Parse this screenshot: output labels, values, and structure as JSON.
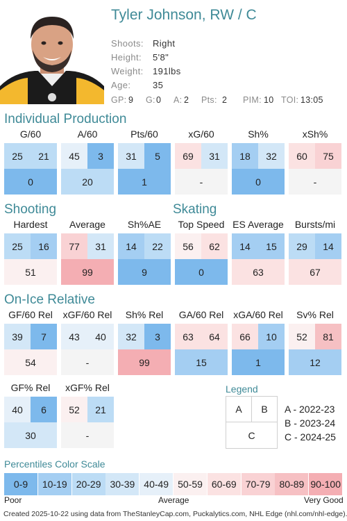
{
  "player": {
    "name": "Tyler Johnson, RW / C",
    "info": [
      {
        "label": "Shoots:",
        "value": "Right"
      },
      {
        "label": "Height:",
        "value": "5'8\""
      },
      {
        "label": "Weight:",
        "value": "191lbs"
      },
      {
        "label": "Age:",
        "value": "35"
      }
    ],
    "stats": [
      {
        "label": "GP:",
        "value": "9"
      },
      {
        "label": "G:",
        "value": "0"
      },
      {
        "label": "A:",
        "value": "2"
      },
      {
        "label": "Pts:",
        "value": "2"
      },
      {
        "label": "PIM:",
        "value": "10"
      },
      {
        "label": "TOI:",
        "value": "13:05"
      }
    ]
  },
  "sections": {
    "individual_production": "Individual Production",
    "shooting": "Shooting",
    "skating": "Skating",
    "on_ice_relative": "On-Ice Relative"
  },
  "metrics": {
    "g60": {
      "label": "G/60",
      "a": "25",
      "b": "21",
      "c": "0"
    },
    "a60": {
      "label": "A/60",
      "a": "45",
      "b": "3",
      "c": "20"
    },
    "pts60": {
      "label": "Pts/60",
      "a": "31",
      "b": "5",
      "c": "1"
    },
    "xg60": {
      "label": "xG/60",
      "a": "69",
      "b": "31",
      "c": "-"
    },
    "sh": {
      "label": "Sh%",
      "a": "18",
      "b": "32",
      "c": "0"
    },
    "xsh": {
      "label": "xSh%",
      "a": "60",
      "b": "75",
      "c": "-"
    },
    "hardest": {
      "label": "Hardest",
      "a": "25",
      "b": "16",
      "c": "51"
    },
    "average": {
      "label": "Average",
      "a": "77",
      "b": "31",
      "c": "99"
    },
    "shae": {
      "label": "Sh%AE",
      "a": "14",
      "b": "22",
      "c": "9"
    },
    "topspeed": {
      "label": "Top Speed",
      "a": "56",
      "b": "62",
      "c": "0"
    },
    "esavg": {
      "label": "ES Average",
      "a": "14",
      "b": "15",
      "c": "63"
    },
    "bursts": {
      "label": "Bursts/mi",
      "a": "29",
      "b": "14",
      "c": "67"
    },
    "gf60rel": {
      "label": "GF/60 Rel",
      "a": "39",
      "b": "7",
      "c": "54"
    },
    "xgf60rel": {
      "label": "xGF/60 Rel",
      "a": "43",
      "b": "40",
      "c": "-"
    },
    "shrel": {
      "label": "Sh% Rel",
      "a": "32",
      "b": "3",
      "c": "99"
    },
    "ga60rel": {
      "label": "GA/60 Rel",
      "a": "63",
      "b": "64",
      "c": "15"
    },
    "xga60rel": {
      "label": "xGA/60 Rel",
      "a": "66",
      "b": "10",
      "c": "1"
    },
    "svrel": {
      "label": "Sv% Rel",
      "a": "52",
      "b": "81",
      "c": "12"
    },
    "gfpctrel": {
      "label": "GF% Rel",
      "a": "40",
      "b": "6",
      "c": "30"
    },
    "xgfpctrel": {
      "label": "xGF% Rel",
      "a": "52",
      "b": "21",
      "c": "-"
    }
  },
  "legend": {
    "title": "Legend",
    "keys": {
      "a": "A",
      "b": "B",
      "c": "C"
    },
    "seasons": [
      "A - 2022-23",
      "B - 2023-24",
      "C - 2024-25"
    ]
  },
  "scale": {
    "title": "Percentiles Color Scale",
    "bins": [
      "0-9",
      "10-19",
      "20-29",
      "30-39",
      "40-49",
      "50-59",
      "60-69",
      "70-79",
      "80-89",
      "90-100"
    ],
    "colors": [
      "#7db9ec",
      "#a4cef2",
      "#bcdcf5",
      "#d3e7f7",
      "#e6f0f9",
      "#fbf0f0",
      "#fbe2e2",
      "#f9d2d4",
      "#f6c0c3",
      "#f4aeb3"
    ],
    "labels": {
      "low": "Poor",
      "mid": "Average",
      "high": "Very Good"
    }
  },
  "footer": "Created 2025-10-22 using data from TheStanleyCap.com, Puckalytics.com, NHL Edge (nhl.com/nhl-edge)."
}
